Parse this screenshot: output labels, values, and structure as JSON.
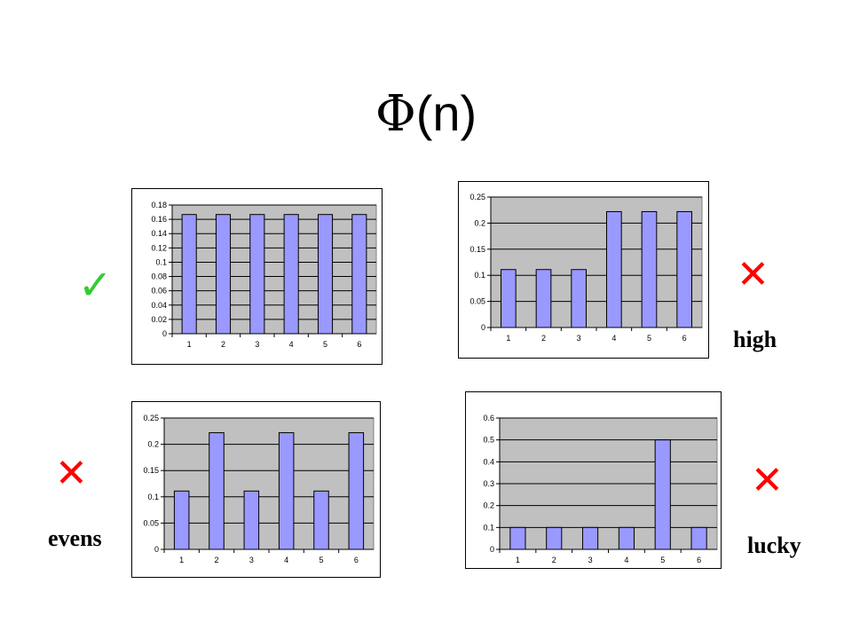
{
  "title": {
    "symbol": "Φ",
    "text": "(n)"
  },
  "marks": {
    "fair": "✓",
    "high": "✕",
    "evens": "✕",
    "lucky": "✕"
  },
  "captions": {
    "high": "high",
    "evens": "evens",
    "lucky": "lucky"
  },
  "colors": {
    "bar_fill": "#9999ff",
    "bar_stroke": "#000000",
    "plot_bg": "#c0c0c0",
    "check": "#33cc33",
    "cross": "#ff0000"
  },
  "chart_data": [
    {
      "type": "bar",
      "categories": [
        "1",
        "2",
        "3",
        "4",
        "5",
        "6"
      ],
      "values": [
        0.1667,
        0.1667,
        0.1667,
        0.1667,
        0.1667,
        0.1667
      ],
      "ylim": [
        0,
        0.18
      ],
      "yticks": [
        "0",
        "0.02",
        "0.04",
        "0.06",
        "0.08",
        "0.1",
        "0.12",
        "0.14",
        "0.16",
        "0.18"
      ],
      "grid": true,
      "title": "",
      "xlabel": "",
      "ylabel": ""
    },
    {
      "type": "bar",
      "categories": [
        "1",
        "2",
        "3",
        "4",
        "5",
        "6"
      ],
      "values": [
        0.111,
        0.111,
        0.111,
        0.222,
        0.222,
        0.222
      ],
      "ylim": [
        0,
        0.25
      ],
      "yticks": [
        "0",
        "0.05",
        "0.1",
        "0.15",
        "0.2",
        "0.25"
      ],
      "grid": true,
      "title": "",
      "xlabel": "",
      "ylabel": ""
    },
    {
      "type": "bar",
      "categories": [
        "1",
        "2",
        "3",
        "4",
        "5",
        "6"
      ],
      "values": [
        0.111,
        0.222,
        0.111,
        0.222,
        0.111,
        0.222
      ],
      "ylim": [
        0,
        0.25
      ],
      "yticks": [
        "0",
        "0.05",
        "0.1",
        "0.15",
        "0.2",
        "0.25"
      ],
      "grid": true,
      "title": "",
      "xlabel": "",
      "ylabel": ""
    },
    {
      "type": "bar",
      "categories": [
        "1",
        "2",
        "3",
        "4",
        "5",
        "6"
      ],
      "values": [
        0.1,
        0.1,
        0.1,
        0.1,
        0.5,
        0.1
      ],
      "ylim": [
        0,
        0.6
      ],
      "yticks": [
        "0",
        "0.1",
        "0.2",
        "0.3",
        "0.4",
        "0.5",
        "0.6"
      ],
      "grid": true,
      "title": "",
      "xlabel": "",
      "ylabel": ""
    }
  ]
}
